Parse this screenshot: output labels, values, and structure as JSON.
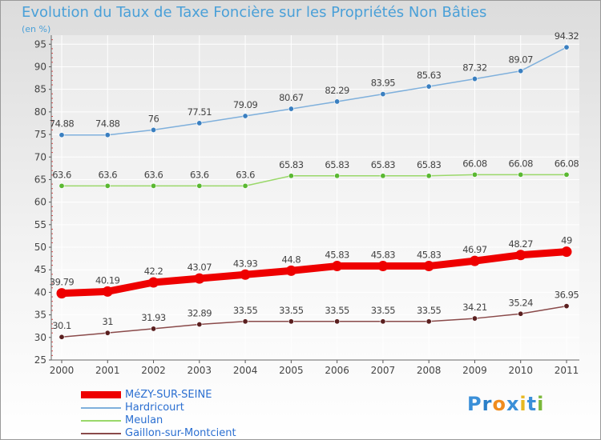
{
  "header": {
    "title": "Evolution du Taux de Taxe Foncière sur les Propriétés Non Bâties",
    "unit": "(en %)"
  },
  "logo": {
    "text": "Proxiti",
    "letters": [
      "P",
      "r",
      "o",
      "x",
      "i",
      "t",
      "i"
    ],
    "colors": [
      "#3a8fd8",
      "#2a7fc8",
      "#f08c1e",
      "#3a8fd8",
      "#e8b820",
      "#3a8fd8",
      "#7ab83a"
    ]
  },
  "chart_data": {
    "type": "line",
    "title": "Evolution du Taux de Taxe Foncière sur les Propriétés Non Bâties",
    "ylabel": "(en %)",
    "xlabel": "",
    "ylim": [
      25,
      97
    ],
    "yticks": [
      "25",
      "30",
      "35",
      "40",
      "45",
      "50",
      "55",
      "60",
      "65",
      "70",
      "75",
      "80",
      "85",
      "90",
      "95"
    ],
    "grid": true,
    "categories": [
      "2000",
      "2001",
      "2002",
      "2003",
      "2004",
      "2005",
      "2006",
      "2007",
      "2008",
      "2009",
      "2010",
      "2011"
    ],
    "series": [
      {
        "name": "MéZY-SUR-SEINE",
        "color": "#ee0000",
        "width": 9,
        "values": [
          39.79,
          40.19,
          42.2,
          43.07,
          43.93,
          44.8,
          45.83,
          45.83,
          45.83,
          46.97,
          48.27,
          49
        ],
        "labels": [
          "39.79",
          "40.19",
          "42.2",
          "43.07",
          "43.93",
          "44.8",
          "45.83",
          "45.83",
          "45.83",
          "46.97",
          "48.27",
          "49"
        ]
      },
      {
        "name": "Hardricourt",
        "color": "#7fb0dc",
        "width": 1.5,
        "marker": "#3a7fc0",
        "values": [
          74.88,
          74.88,
          76,
          77.51,
          79.09,
          80.67,
          82.29,
          83.95,
          85.63,
          87.32,
          89.07,
          94.32
        ],
        "labels": [
          "74.88",
          "74.88",
          "76",
          "77.51",
          "79.09",
          "80.67",
          "82.29",
          "83.95",
          "85.63",
          "87.32",
          "89.07",
          "94.32"
        ]
      },
      {
        "name": "Meulan",
        "color": "#9ad86a",
        "width": 1.5,
        "marker": "#5ab832",
        "values": [
          63.6,
          63.6,
          63.6,
          63.6,
          63.6,
          65.83,
          65.83,
          65.83,
          65.83,
          66.08,
          66.08,
          66.08
        ],
        "labels": [
          "63.6",
          "63.6",
          "63.6",
          "63.6",
          "63.6",
          "65.83",
          "65.83",
          "65.83",
          "65.83",
          "66.08",
          "66.08",
          "66.08"
        ]
      },
      {
        "name": "Gaillon-sur-Montcient",
        "color": "#8a4a4a",
        "width": 1.5,
        "marker": "#5a1f1f",
        "values": [
          30.1,
          31,
          31.93,
          32.89,
          33.55,
          33.55,
          33.55,
          33.55,
          33.55,
          34.21,
          35.24,
          36.95
        ],
        "labels": [
          "30.1",
          "31",
          "31.93",
          "32.89",
          "33.55",
          "33.55",
          "33.55",
          "33.55",
          "33.55",
          "34.21",
          "35.24",
          "36.95"
        ]
      }
    ]
  }
}
